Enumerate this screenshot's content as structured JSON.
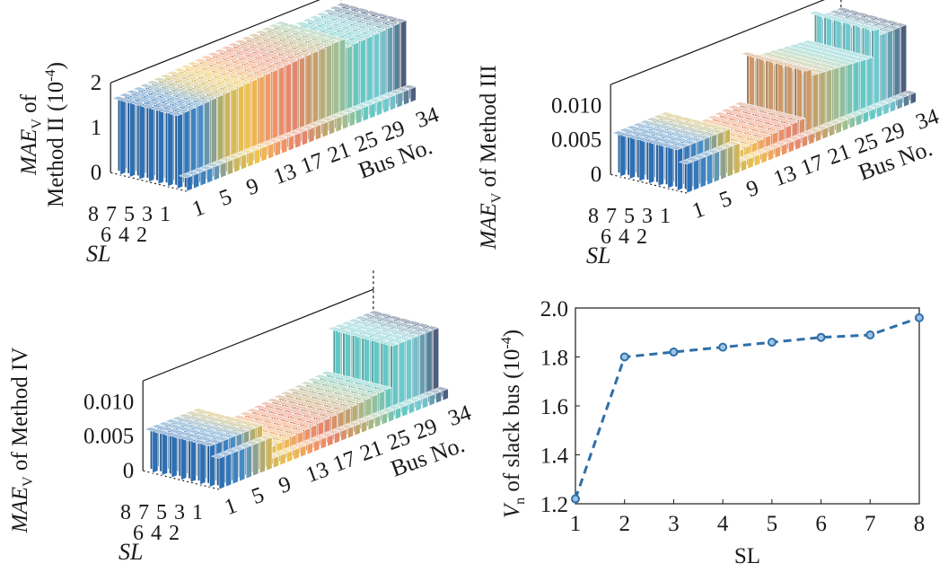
{
  "chart_data": [
    {
      "type": "bar3d",
      "ylabel_main": "MAE",
      "ylabel_sub": "V",
      "ylabel_line1_suffix": " of",
      "ylabel_line2": "Method II (10",
      "ylabel_line2_exp": "-4",
      "ylabel_line2_end": ")",
      "z_ticks": [
        "2",
        "1",
        "0"
      ],
      "zlim": [
        0,
        2
      ],
      "bus_label": "Bus No.",
      "bus_ticks": [
        "1",
        "5",
        "9",
        "13",
        "17",
        "21",
        "25",
        "29",
        "34"
      ],
      "sl_label": "SL",
      "sl_ticks_row1": [
        "8",
        "7",
        "5",
        "3",
        "1"
      ],
      "sl_ticks_row2": [
        "6",
        "4",
        "2"
      ],
      "bus_count": 34,
      "sl_count": 8,
      "profile": [
        1.65,
        1.66,
        1.67,
        1.68,
        1.69,
        1.7,
        1.71,
        1.72,
        1.73,
        1.74,
        1.75,
        1.76,
        1.77,
        1.78,
        1.79,
        1.8,
        1.81,
        1.82,
        1.83,
        1.84,
        1.85,
        1.86,
        1.87,
        1.88,
        1.88,
        1.66,
        1.68,
        1.69,
        1.7,
        1.71,
        1.72,
        1.73,
        1.74,
        1.75
      ],
      "sl1_profile": [
        0.3,
        0.3,
        0.3,
        0.3,
        0.3,
        0.3,
        0.3,
        0.3,
        0.3,
        0.3,
        0.3,
        0.3,
        0.3,
        0.3,
        0.3,
        0.3,
        0.3,
        0.3,
        0.3,
        0.3,
        0.3,
        0.3,
        0.3,
        0.3,
        0.3,
        0.3,
        0.3,
        0.3,
        0.3,
        0.3,
        0.3,
        0.3,
        0.3,
        0.3
      ]
    },
    {
      "type": "bar3d",
      "ylabel_main": "MAE",
      "ylabel_sub": "V",
      "ylabel_suffix": " of Method III",
      "z_ticks": [
        "0.010",
        "0.005",
        "0"
      ],
      "zlim": [
        0,
        0.013
      ],
      "bus_label": "Bus No.",
      "bus_ticks": [
        "1",
        "5",
        "9",
        "13",
        "17",
        "21",
        "25",
        "29",
        "34"
      ],
      "sl_label": "SL",
      "sl_ticks_row1": [
        "8",
        "7",
        "5",
        "3",
        "1"
      ],
      "sl_ticks_row2": [
        "6",
        "4",
        "2"
      ],
      "bus_count": 34,
      "sl_count": 8,
      "profile": [
        0.006,
        0.006,
        0.006,
        0.006,
        0.006,
        0.006,
        0.006,
        0.006,
        0.0022,
        0.0023,
        0.0024,
        0.0025,
        0.0026,
        0.0027,
        0.0028,
        0.0029,
        0.003,
        0.0031,
        0.0032,
        0.01,
        0.009,
        0.0089,
        0.0088,
        0.0087,
        0.0086,
        0.0085,
        0.0084,
        0.0083,
        0.0082,
        0.012,
        0.011,
        0.011,
        0.011,
        0.011
      ],
      "sl1_profile": [
        0.0042,
        0.0042,
        0.0042,
        0.0042,
        0.0042,
        0.0042,
        0.0042,
        0.0042,
        0.0014,
        0.0014,
        0.0014,
        0.0014,
        0.0014,
        0.0014,
        0.0014,
        0.0014,
        0.0014,
        0.0014,
        0.0014,
        0.0014,
        0.0014,
        0.0014,
        0.0014,
        0.0014,
        0.0014,
        0.0014,
        0.0014,
        0.0014,
        0.0014,
        0.0014,
        0.0014,
        0.0014,
        0.0014,
        0.0014
      ]
    },
    {
      "type": "bar3d",
      "ylabel_main": "MAE",
      "ylabel_sub": "V",
      "ylabel_suffix": " of Method IV",
      "z_ticks": [
        "0.010",
        "0.005",
        "0"
      ],
      "zlim": [
        0,
        0.013
      ],
      "bus_label": "Bus No.",
      "bus_ticks": [
        "1",
        "5",
        "9",
        "13",
        "17",
        "21",
        "25",
        "29",
        "34"
      ],
      "sl_label": "SL",
      "sl_ticks_row1": [
        "8",
        "7",
        "5",
        "3",
        "1"
      ],
      "sl_ticks_row2": [
        "6",
        "4",
        "2"
      ],
      "bus_count": 34,
      "sl_count": 8,
      "profile": [
        0.006,
        0.006,
        0.006,
        0.006,
        0.006,
        0.006,
        0.006,
        0.006,
        0.0022,
        0.0023,
        0.0024,
        0.0025,
        0.0026,
        0.0027,
        0.0028,
        0.0029,
        0.003,
        0.0031,
        0.0032,
        0.0033,
        0.0034,
        0.0035,
        0.0036,
        0.0037,
        0.0038,
        0.0039,
        0.004,
        0.01,
        0.01,
        0.01,
        0.01,
        0.01,
        0.01,
        0.01
      ],
      "sl1_profile": [
        0.0045,
        0.0045,
        0.0045,
        0.0045,
        0.0045,
        0.0045,
        0.0045,
        0.0045,
        0.0014,
        0.0014,
        0.0014,
        0.0014,
        0.0014,
        0.0014,
        0.0014,
        0.0014,
        0.0014,
        0.0014,
        0.0014,
        0.0014,
        0.0014,
        0.0014,
        0.0014,
        0.0014,
        0.0014,
        0.0014,
        0.0014,
        0.0014,
        0.0014,
        0.0014,
        0.0014,
        0.0014,
        0.0014,
        0.0014
      ]
    },
    {
      "type": "line",
      "xlabel": "SL",
      "ylabel_main": "V",
      "ylabel_sub": "n",
      "ylabel_suffix": " of slack bus (10",
      "ylabel_exp": "-4",
      "ylabel_end": ")",
      "x": [
        1,
        2,
        3,
        4,
        5,
        6,
        7,
        8
      ],
      "y": [
        1.22,
        1.8,
        1.82,
        1.84,
        1.86,
        1.88,
        1.89,
        1.96
      ],
      "xlim": [
        1,
        8
      ],
      "ylim": [
        1.2,
        2.0
      ],
      "x_ticks": [
        "1",
        "2",
        "3",
        "4",
        "5",
        "6",
        "7",
        "8"
      ],
      "y_ticks": [
        "1.2",
        "1.4",
        "1.6",
        "1.8",
        "2.0"
      ],
      "y_tick_values": [
        1.2,
        1.4,
        1.6,
        1.8,
        2.0
      ],
      "line_color": "#2f6fa8",
      "line_style": "dashed",
      "marker": "circle"
    }
  ],
  "colors": {
    "bar_palette": [
      "#2d6fb4",
      "#4a8fc6",
      "#c7b25a",
      "#f1c24a",
      "#f29862",
      "#e8836b",
      "#c5a067",
      "#9fbf8f",
      "#5fc8c4",
      "#76c9d1",
      "#4d5f7f"
    ],
    "axis": "#1a1a1a"
  }
}
